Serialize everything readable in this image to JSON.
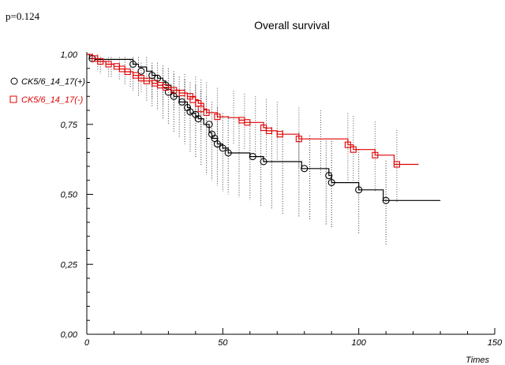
{
  "chart_data": {
    "type": "line",
    "subtype": "kaplan-meier",
    "annotation": "p=0.124",
    "title": "Overall survival",
    "xlabel": "Times",
    "ylabel": "",
    "xlim": [
      0,
      150
    ],
    "ylim": [
      0,
      1
    ],
    "x_ticks": [
      0,
      50,
      100,
      150
    ],
    "y_ticks": [
      0,
      0.25,
      0.5,
      0.75,
      1.0
    ],
    "x_tick_labels": [
      "0",
      "50",
      "100",
      "150"
    ],
    "y_tick_labels": [
      "0,00",
      "0,25",
      "0,50",
      "0,75",
      "1,00"
    ],
    "grid": false,
    "legend_position": "top-left",
    "series": [
      {
        "name": "CK5/6_14_17(+)",
        "color": "#000000",
        "marker": "circle",
        "steps": [
          [
            0,
            1.0
          ],
          [
            1,
            0.985
          ],
          [
            3,
            0.982
          ],
          [
            17,
            0.965
          ],
          [
            19,
            0.955
          ],
          [
            22,
            0.94
          ],
          [
            24,
            0.925
          ],
          [
            26,
            0.915
          ],
          [
            28,
            0.905
          ],
          [
            29,
            0.89
          ],
          [
            31,
            0.865
          ],
          [
            32,
            0.85
          ],
          [
            34,
            0.83
          ],
          [
            37,
            0.81
          ],
          [
            38,
            0.79
          ],
          [
            40,
            0.78
          ],
          [
            41,
            0.77
          ],
          [
            43,
            0.75
          ],
          [
            45,
            0.72
          ],
          [
            46,
            0.7
          ],
          [
            48,
            0.68
          ],
          [
            50,
            0.665
          ],
          [
            52,
            0.648
          ],
          [
            60,
            0.635
          ],
          [
            65,
            0.617
          ],
          [
            79,
            0.592
          ],
          [
            89,
            0.567
          ],
          [
            90,
            0.542
          ],
          [
            100,
            0.516
          ],
          [
            109,
            0.478
          ],
          [
            130,
            0.478
          ]
        ],
        "markers": [
          [
            2,
            0.985
          ],
          [
            17,
            0.965
          ],
          [
            20,
            0.94
          ],
          [
            24,
            0.925
          ],
          [
            26,
            0.915
          ],
          [
            29,
            0.89
          ],
          [
            30,
            0.865
          ],
          [
            32,
            0.85
          ],
          [
            35,
            0.83
          ],
          [
            37,
            0.81
          ],
          [
            38,
            0.795
          ],
          [
            40,
            0.785
          ],
          [
            41,
            0.77
          ],
          [
            45,
            0.75
          ],
          [
            46,
            0.715
          ],
          [
            47,
            0.7
          ],
          [
            48,
            0.68
          ],
          [
            50,
            0.665
          ],
          [
            52,
            0.648
          ],
          [
            61,
            0.635
          ],
          [
            65,
            0.617
          ],
          [
            80,
            0.592
          ],
          [
            89,
            0.567
          ],
          [
            90,
            0.542
          ],
          [
            100,
            0.516
          ],
          [
            110,
            0.478
          ]
        ],
        "ci": [
          [
            5,
            0.99,
            0.93
          ],
          [
            9,
            0.99,
            0.92
          ],
          [
            14,
            0.99,
            0.89
          ],
          [
            17,
            0.99,
            0.87
          ],
          [
            19,
            0.99,
            0.85
          ],
          [
            22,
            0.99,
            0.83
          ],
          [
            24,
            0.97,
            0.81
          ],
          [
            26,
            0.97,
            0.8
          ],
          [
            28,
            0.96,
            0.77
          ],
          [
            30,
            0.95,
            0.75
          ],
          [
            32,
            0.93,
            0.72
          ],
          [
            34,
            0.92,
            0.7
          ],
          [
            36,
            0.91,
            0.68
          ],
          [
            38,
            0.9,
            0.65
          ],
          [
            40,
            0.89,
            0.63
          ],
          [
            42,
            0.87,
            0.6
          ],
          [
            44,
            0.85,
            0.57
          ],
          [
            46,
            0.83,
            0.55
          ],
          [
            48,
            0.81,
            0.53
          ],
          [
            50,
            0.79,
            0.51
          ],
          [
            52,
            0.78,
            0.5
          ],
          [
            56,
            0.77,
            0.49
          ],
          [
            60,
            0.76,
            0.48
          ],
          [
            64,
            0.75,
            0.46
          ],
          [
            68,
            0.74,
            0.45
          ],
          [
            72,
            0.73,
            0.43
          ],
          [
            78,
            0.72,
            0.42
          ],
          [
            82,
            0.71,
            0.41
          ],
          [
            88,
            0.7,
            0.39
          ],
          [
            90,
            0.69,
            0.38
          ],
          [
            100,
            0.66,
            0.36
          ],
          [
            110,
            0.62,
            0.32
          ]
        ]
      },
      {
        "name": "CK5/6_14_17(-)",
        "color": "#e00000",
        "marker": "square",
        "steps": [
          [
            0,
            1.0
          ],
          [
            2,
            0.985
          ],
          [
            4,
            0.975
          ],
          [
            7,
            0.965
          ],
          [
            10,
            0.957
          ],
          [
            12,
            0.948
          ],
          [
            14,
            0.938
          ],
          [
            17,
            0.925
          ],
          [
            19,
            0.915
          ],
          [
            21,
            0.905
          ],
          [
            24,
            0.897
          ],
          [
            26,
            0.89
          ],
          [
            28,
            0.882
          ],
          [
            31,
            0.872
          ],
          [
            34,
            0.862
          ],
          [
            37,
            0.85
          ],
          [
            40,
            0.838
          ],
          [
            41,
            0.825
          ],
          [
            43,
            0.805
          ],
          [
            44,
            0.792
          ],
          [
            48,
            0.777
          ],
          [
            52,
            0.774
          ],
          [
            56,
            0.765
          ],
          [
            58,
            0.757
          ],
          [
            65,
            0.738
          ],
          [
            66,
            0.727
          ],
          [
            70,
            0.715
          ],
          [
            78,
            0.698
          ],
          [
            96,
            0.677
          ],
          [
            98,
            0.66
          ],
          [
            106,
            0.64
          ],
          [
            113,
            0.607
          ],
          [
            122,
            0.607
          ]
        ],
        "markers": [
          [
            3,
            0.985
          ],
          [
            5,
            0.975
          ],
          [
            8,
            0.965
          ],
          [
            11,
            0.957
          ],
          [
            13,
            0.948
          ],
          [
            15,
            0.938
          ],
          [
            18,
            0.925
          ],
          [
            20,
            0.915
          ],
          [
            22,
            0.905
          ],
          [
            25,
            0.897
          ],
          [
            27,
            0.89
          ],
          [
            29,
            0.882
          ],
          [
            32,
            0.872
          ],
          [
            35,
            0.862
          ],
          [
            38,
            0.85
          ],
          [
            39,
            0.838
          ],
          [
            41,
            0.825
          ],
          [
            42,
            0.805
          ],
          [
            44,
            0.792
          ],
          [
            48,
            0.777
          ],
          [
            57,
            0.765
          ],
          [
            59,
            0.757
          ],
          [
            65,
            0.738
          ],
          [
            67,
            0.727
          ],
          [
            71,
            0.715
          ],
          [
            78,
            0.698
          ],
          [
            96,
            0.677
          ],
          [
            98,
            0.66
          ],
          [
            106,
            0.64
          ],
          [
            114,
            0.607
          ]
        ],
        "ci": [
          [
            4,
            1.0,
            0.94
          ],
          [
            8,
            0.99,
            0.92
          ],
          [
            12,
            0.99,
            0.91
          ],
          [
            16,
            0.98,
            0.88
          ],
          [
            20,
            0.97,
            0.86
          ],
          [
            24,
            0.96,
            0.84
          ],
          [
            28,
            0.95,
            0.82
          ],
          [
            32,
            0.94,
            0.8
          ],
          [
            36,
            0.93,
            0.78
          ],
          [
            40,
            0.92,
            0.76
          ],
          [
            42,
            0.91,
            0.73
          ],
          [
            44,
            0.9,
            0.71
          ],
          [
            48,
            0.88,
            0.69
          ],
          [
            54,
            0.87,
            0.68
          ],
          [
            58,
            0.86,
            0.66
          ],
          [
            62,
            0.85,
            0.64
          ],
          [
            66,
            0.84,
            0.63
          ],
          [
            70,
            0.83,
            0.61
          ],
          [
            78,
            0.81,
            0.59
          ],
          [
            86,
            0.8,
            0.57
          ],
          [
            96,
            0.79,
            0.55
          ],
          [
            98,
            0.78,
            0.54
          ],
          [
            106,
            0.76,
            0.51
          ],
          [
            114,
            0.73,
            0.47
          ]
        ]
      }
    ]
  }
}
